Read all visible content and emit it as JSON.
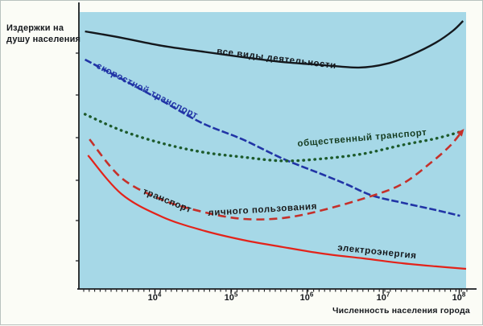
{
  "figure": {
    "plot_background_color": "#a6d8e7",
    "page_background_color": "#fbfcf6",
    "axis_color": "#1a1d20"
  },
  "y_axis": {
    "label_line1": "Издержки на",
    "label_line2": "душу населения"
  },
  "chart_data": {
    "type": "line",
    "title": "",
    "xlabel": "Численность населения города",
    "ylabel": "Издержки на душу населения",
    "x_scale": "log10",
    "x_range_log10": [
      3,
      8.1
    ],
    "y_unit": "relative cost per capita (unlabeled qualitative axis, 0-100)",
    "grid": false,
    "legend": "labels drawn along curves",
    "x_ticks": [
      {
        "label": "10",
        "exp": "4",
        "log10": 4
      },
      {
        "label": "10",
        "exp": "5",
        "log10": 5
      },
      {
        "label": "10",
        "exp": "6",
        "log10": 6
      },
      {
        "label": "10",
        "exp": "7",
        "log10": 7
      },
      {
        "label": "10",
        "exp": "8",
        "log10": 8
      }
    ],
    "series": [
      {
        "id": "all-activities",
        "name": "все виды деятельности",
        "color": "#14181d",
        "line_style": "solid",
        "stroke_width": 2.4,
        "points": [
          [
            3.08,
            93.0
          ],
          [
            3.56,
            90.7
          ],
          [
            4.09,
            87.8
          ],
          [
            4.62,
            85.7
          ],
          [
            5.15,
            83.7
          ],
          [
            5.68,
            81.9
          ],
          [
            6.21,
            80.8
          ],
          [
            6.68,
            79.9
          ],
          [
            7.05,
            81.3
          ],
          [
            7.37,
            84.5
          ],
          [
            7.69,
            88.9
          ],
          [
            7.92,
            93.3
          ],
          [
            8.05,
            96.8
          ]
        ]
      },
      {
        "id": "rapid-transit",
        "name": "скоростной транспорт",
        "color": "#2134a6",
        "line_style": "dense-dash",
        "stroke_width": 2.6,
        "points": [
          [
            3.08,
            82.8
          ],
          [
            3.56,
            75.8
          ],
          [
            4.09,
            67.9
          ],
          [
            4.62,
            59.8
          ],
          [
            5.15,
            53.9
          ],
          [
            5.68,
            46.9
          ],
          [
            6.21,
            41.1
          ],
          [
            6.52,
            37.6
          ],
          [
            6.86,
            33.5
          ],
          [
            7.26,
            30.9
          ],
          [
            7.69,
            28.3
          ],
          [
            8.01,
            26.2
          ]
        ]
      },
      {
        "id": "public-transport",
        "name": "общественный транспорт",
        "color": "#1d5a2b",
        "line_style": "dotted",
        "stroke_width": 3.4,
        "points": [
          [
            3.08,
            63.0
          ],
          [
            3.56,
            57.1
          ],
          [
            4.09,
            52.5
          ],
          [
            4.62,
            49.3
          ],
          [
            5.15,
            47.5
          ],
          [
            5.68,
            46.1
          ],
          [
            6.21,
            46.9
          ],
          [
            6.74,
            48.7
          ],
          [
            7.26,
            51.9
          ],
          [
            7.69,
            54.2
          ],
          [
            8.01,
            56.6
          ]
        ]
      },
      {
        "id": "personal-transport",
        "name": "транспорт личного пользования",
        "label_part1": "транспорт",
        "label_part2": "личного пользования",
        "color": "#c5302a",
        "line_style": "dashed",
        "stroke_width": 2.6,
        "arrow_end": true,
        "points": [
          [
            3.14,
            53.9
          ],
          [
            3.56,
            39.9
          ],
          [
            4.09,
            32.1
          ],
          [
            4.62,
            27.7
          ],
          [
            5.15,
            25.1
          ],
          [
            5.68,
            25.4
          ],
          [
            6.21,
            28.3
          ],
          [
            6.86,
            33.5
          ],
          [
            7.26,
            37.9
          ],
          [
            7.63,
            45.5
          ],
          [
            7.88,
            51.6
          ],
          [
            8.03,
            56.6
          ]
        ]
      },
      {
        "id": "electricity",
        "name": "электроэнергия",
        "color": "#e3231a",
        "line_style": "solid",
        "stroke_width": 2.2,
        "points": [
          [
            3.12,
            48.1
          ],
          [
            3.56,
            34.1
          ],
          [
            4.09,
            25.9
          ],
          [
            4.62,
            21.0
          ],
          [
            5.15,
            17.5
          ],
          [
            5.68,
            14.9
          ],
          [
            6.21,
            12.5
          ],
          [
            6.74,
            10.8
          ],
          [
            7.26,
            9.0
          ],
          [
            7.69,
            7.9
          ],
          [
            8.09,
            7.0
          ]
        ]
      }
    ]
  }
}
